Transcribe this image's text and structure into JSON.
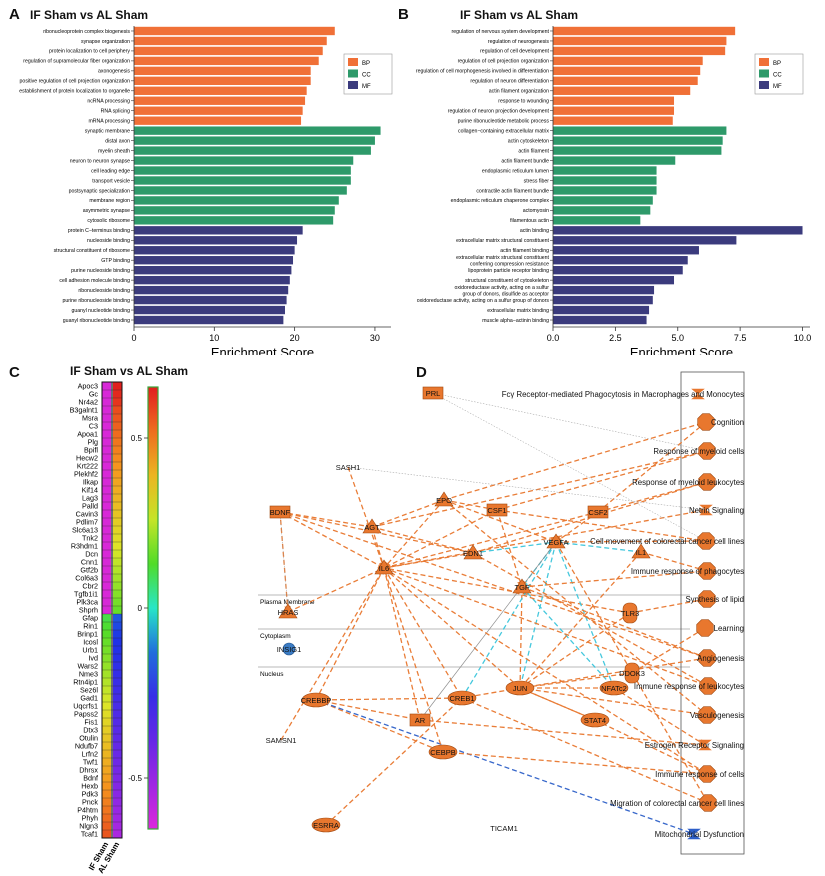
{
  "colors": {
    "BP": "#f07037",
    "CC": "#2e9a6a",
    "MF": "#3b3b7d",
    "node": "#e8772e",
    "node_dark": "#a0480f",
    "blue_node": "#3b7cc4",
    "edge_orange": "#e8772e",
    "edge_cyan": "#3cc6dc",
    "edge_blue": "#2d5fc8",
    "edge_gray": "#888888"
  },
  "panelA": {
    "letter": "A",
    "title": "IF Sham vs AL Sham",
    "chart_data": {
      "type": "bar",
      "orientation": "horizontal",
      "xlabel": "Enrichment Score",
      "xlim": [
        0,
        32
      ],
      "xticks": [
        0,
        10,
        20,
        30
      ],
      "legend": {
        "placement": "right",
        "entries": [
          "BP",
          "CC",
          "MF"
        ]
      },
      "bars": [
        {
          "label": "ribonucleoprotein complex biogenesis",
          "value": 25.0,
          "cat": "BP"
        },
        {
          "label": "synapse organization",
          "value": 24.0,
          "cat": "BP"
        },
        {
          "label": "protein localization to cell periphery",
          "value": 23.5,
          "cat": "BP"
        },
        {
          "label": "regulation of supramolecular fiber organization",
          "value": 23.0,
          "cat": "BP"
        },
        {
          "label": "axonogenesis",
          "value": 22.0,
          "cat": "BP"
        },
        {
          "label": "positive regulation of cell projection organization",
          "value": 22.0,
          "cat": "BP"
        },
        {
          "label": "establishment of protein localization to organelle",
          "value": 21.5,
          "cat": "BP"
        },
        {
          "label": "ncRNA processing",
          "value": 21.3,
          "cat": "BP"
        },
        {
          "label": "RNA splicing",
          "value": 21.0,
          "cat": "BP"
        },
        {
          "label": "mRNA processing",
          "value": 20.8,
          "cat": "BP"
        },
        {
          "label": "synaptic membrane",
          "value": 30.7,
          "cat": "CC"
        },
        {
          "label": "distal axon",
          "value": 30.0,
          "cat": "CC"
        },
        {
          "label": "myelin sheath",
          "value": 29.5,
          "cat": "CC"
        },
        {
          "label": "neuron to neuron synapse",
          "value": 27.3,
          "cat": "CC"
        },
        {
          "label": "cell leading edge",
          "value": 27.0,
          "cat": "CC"
        },
        {
          "label": "transport vesicle",
          "value": 27.0,
          "cat": "CC"
        },
        {
          "label": "postsynaptic specialization",
          "value": 26.5,
          "cat": "CC"
        },
        {
          "label": "membrane region",
          "value": 25.5,
          "cat": "CC"
        },
        {
          "label": "asymmetric synapse",
          "value": 25.0,
          "cat": "CC"
        },
        {
          "label": "cytosolic ribosome",
          "value": 24.8,
          "cat": "CC"
        },
        {
          "label": "protein C−terminus binding",
          "value": 21.0,
          "cat": "MF"
        },
        {
          "label": "nucleoside binding",
          "value": 20.3,
          "cat": "MF"
        },
        {
          "label": "structural constituent of ribosome",
          "value": 20.0,
          "cat": "MF"
        },
        {
          "label": "GTP binding",
          "value": 19.8,
          "cat": "MF"
        },
        {
          "label": "purine nucleoside binding",
          "value": 19.6,
          "cat": "MF"
        },
        {
          "label": "cell adhesion molecule binding",
          "value": 19.4,
          "cat": "MF"
        },
        {
          "label": "ribonucleoside binding",
          "value": 19.2,
          "cat": "MF"
        },
        {
          "label": "purine ribonucleoside binding",
          "value": 19.0,
          "cat": "MF"
        },
        {
          "label": "guanyl nucleotide binding",
          "value": 18.8,
          "cat": "MF"
        },
        {
          "label": "guanyl ribonucleotide binding",
          "value": 18.6,
          "cat": "MF"
        }
      ]
    }
  },
  "panelB": {
    "letter": "B",
    "title": "IF Sham vs AL Sham",
    "chart_data": {
      "type": "bar",
      "orientation": "horizontal",
      "xlabel": "Enrichment Score",
      "xlim": [
        0,
        10.3
      ],
      "xticks": [
        0.0,
        2.5,
        5.0,
        7.5,
        10.0
      ],
      "xtick_labels": [
        "0.0",
        "2.5",
        "5.0",
        "7.5",
        "10.0"
      ],
      "legend": {
        "placement": "right",
        "entries": [
          "BP",
          "CC",
          "MF"
        ]
      },
      "bars": [
        {
          "label": "regulation of nervous system development",
          "value": 7.3,
          "cat": "BP"
        },
        {
          "label": "regulation of neurogenesis",
          "value": 6.95,
          "cat": "BP"
        },
        {
          "label": "regulation of cell development",
          "value": 6.9,
          "cat": "BP"
        },
        {
          "label": "regulation of cell projection organization",
          "value": 6.0,
          "cat": "BP"
        },
        {
          "label": "regulation of cell morphogenesis involved in differentiation",
          "value": 5.9,
          "cat": "BP"
        },
        {
          "label": "regulation of neuron differentiation",
          "value": 5.8,
          "cat": "BP"
        },
        {
          "label": "actin filament organization",
          "value": 5.5,
          "cat": "BP"
        },
        {
          "label": "response to wounding",
          "value": 4.85,
          "cat": "BP"
        },
        {
          "label": "regulation of neuron projection development",
          "value": 4.85,
          "cat": "BP"
        },
        {
          "label": "purine ribonucleotide metabolic process",
          "value": 4.8,
          "cat": "BP"
        },
        {
          "label": "collagen−containing extracellular matrix",
          "value": 6.95,
          "cat": "CC"
        },
        {
          "label": "actin cytoskeleton",
          "value": 6.8,
          "cat": "CC"
        },
        {
          "label": "actin filament",
          "value": 6.75,
          "cat": "CC"
        },
        {
          "label": "actin filament bundle",
          "value": 4.9,
          "cat": "CC"
        },
        {
          "label": "endoplasmic reticulum lumen",
          "value": 4.15,
          "cat": "CC"
        },
        {
          "label": "stress fiber",
          "value": 4.15,
          "cat": "CC"
        },
        {
          "label": "contractile actin filament bundle",
          "value": 4.15,
          "cat": "CC"
        },
        {
          "label": "endoplasmic reticulum chaperone complex",
          "value": 4.0,
          "cat": "CC"
        },
        {
          "label": "actomyosin",
          "value": 3.9,
          "cat": "CC"
        },
        {
          "label": "filamentous actin",
          "value": 3.5,
          "cat": "CC"
        },
        {
          "label": "actin binding",
          "value": 10.0,
          "cat": "MF"
        },
        {
          "label": "extracellular matrix structural constituent",
          "value": 7.35,
          "cat": "MF"
        },
        {
          "label": "actin filament binding",
          "value": 5.85,
          "cat": "MF"
        },
        {
          "label": "extracellular matrix structural constituent conferring compression resistance",
          "value": 5.4,
          "cat": "MF"
        },
        {
          "label": "lipoprotein particle receptor binding",
          "value": 5.2,
          "cat": "MF"
        },
        {
          "label": "structural constituent of cytoskeleton",
          "value": 4.85,
          "cat": "MF"
        },
        {
          "label": "oxidoreductase activity, acting on a sulfur group of donors, disulfide as acceptor",
          "value": 4.05,
          "cat": "MF"
        },
        {
          "label": "oxidoreductase activity, acting on a sulfur group of donors",
          "value": 4.0,
          "cat": "MF"
        },
        {
          "label": "extracellular matrix binding",
          "value": 3.85,
          "cat": "MF"
        },
        {
          "label": "muscle alpha−actinin binding",
          "value": 3.75,
          "cat": "MF"
        }
      ]
    }
  },
  "panelC": {
    "letter": "C",
    "title": "IF Sham vs AL Sham",
    "chart_data": {
      "type": "heatmap",
      "columns": [
        "IF Sham",
        "AL Sham"
      ],
      "scale": {
        "ticks": [
          0.5,
          0,
          -0.5
        ],
        "tick_labels": [
          "0.5",
          "0",
          "-0.5"
        ],
        "range": [
          -0.65,
          0.65
        ]
      },
      "genes_up": [
        "Apoc3",
        "Gc",
        "Nr4a2",
        "B3galnt1",
        "Msra",
        "C3",
        "Apoa1",
        "Plg",
        "Bpifl",
        "Hecw2",
        "Krt222",
        "Plekhf2",
        "Ilkap",
        "Kif14",
        "Lag3",
        "Palld",
        "Cavin3",
        "Pdlim7",
        "Slc6a13",
        "Tnk2",
        "R3hdm1",
        "Dcn",
        "Cnn1",
        "Gtf2b",
        "Col6a3",
        "Cbr2",
        "Tgfb1i1",
        "Plk3ca",
        "Shprh"
      ],
      "genes_down": [
        "Gfap",
        "Rin1",
        "Brinp1",
        "Icosl",
        "Urb1",
        "Ivd",
        "Wars2",
        "Nme3",
        "Rtn4ip1",
        "Sez6l",
        "Gad1",
        "Uqcrfs1",
        "Papss2",
        "Fis1",
        "Dtx3",
        "Otulin",
        "Ndufb7",
        "Lrfn2",
        "Twf1",
        "Dhrsx",
        "Bdnf",
        "Hexb",
        "Pdk3",
        "Pnck",
        "P4htm",
        "Phyh",
        "Nlgn3",
        "Tcaf1"
      ]
    }
  },
  "panelD": {
    "letter": "D",
    "compartments": [
      "Plasma Membrane",
      "Cytoplasm",
      "Nucleus"
    ],
    "nodes": [
      "PRL",
      "SASH1",
      "BDNF",
      "AGT",
      "EPO",
      "CSF1",
      "CSF2",
      "EDN1",
      "VEGFA",
      "IL6",
      "TGF",
      "IL1",
      "HRAS",
      "INSIG1",
      "TLR3",
      "DDOK3",
      "CREBBP",
      "AR",
      "CREB1",
      "JUN",
      "NFATc2",
      "STAT4",
      "SAMSN1",
      "CEBPB",
      "ESRRA",
      "TICAM1"
    ],
    "functions": [
      "Fcγ Receptor-mediated Phagocytosis in Macrophages and Monocytes",
      "Cognition",
      "Response of myeloid cells",
      "Response of myeloid leukocytes",
      "Netrin Signaling",
      "Cell movement of colorectal cancer cell lines",
      "Immune response of phagocytes",
      "Synthesis of lipid",
      "Learning",
      "Angiogenesis",
      "Immune response of leukocytes",
      "Vasculogenesis",
      "Estrogen Receptor Signaling",
      "Immune response of cells",
      "Migration of colorectal cancer cell lines",
      "Mitochondrial Dysfunction"
    ]
  }
}
